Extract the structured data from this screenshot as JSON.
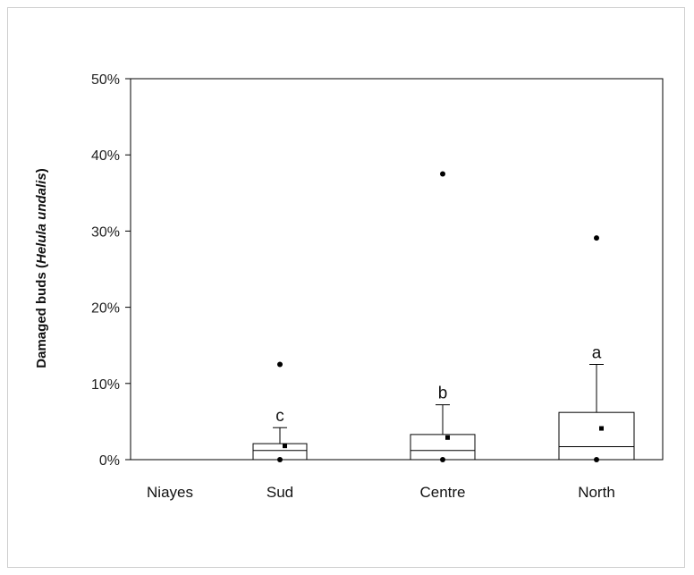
{
  "chart_data": {
    "type": "box",
    "ylabel": "Damaged buds",
    "ylabel_species": "Helula undalis",
    "ylabel_open": "(",
    "ylabel_close": ")",
    "ylim": [
      0,
      50
    ],
    "y_ticks": [
      0,
      10,
      20,
      30,
      40,
      50
    ],
    "y_tick_labels": [
      "0%",
      "10%",
      "20%",
      "30%",
      "40%",
      "50%"
    ],
    "categories": [
      "Niayes",
      "Sud",
      "Centre",
      "North"
    ],
    "boxes": [
      null,
      {
        "category": "Sud",
        "min": 0,
        "q1": 0,
        "median": 1.2,
        "q3": 2.1,
        "whisker_high": 4.2,
        "mean": 1.8,
        "outliers": [
          12.5
        ],
        "letter": "c"
      },
      {
        "category": "Centre",
        "min": 0,
        "q1": 0,
        "median": 1.2,
        "q3": 3.3,
        "whisker_high": 7.2,
        "mean": 2.9,
        "outliers": [
          37.5
        ],
        "letter": "b"
      },
      {
        "category": "North",
        "min": 0,
        "q1": 0,
        "median": 1.7,
        "q3": 6.2,
        "whisker_high": 12.5,
        "mean": 4.1,
        "outliers": [
          29.1
        ],
        "letter": "a"
      }
    ],
    "grid": false,
    "legend": "none"
  }
}
